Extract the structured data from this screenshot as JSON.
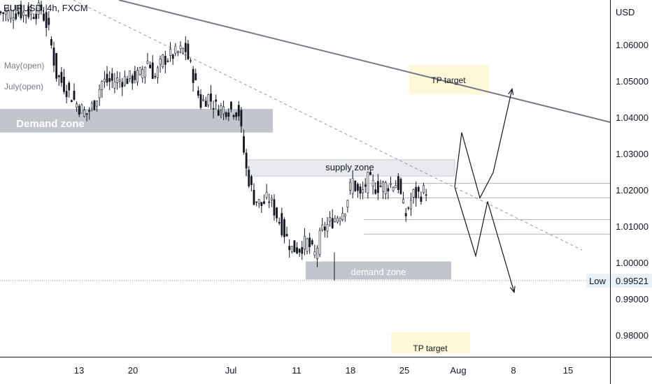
{
  "symbol": "EURUSD, 4h, FXCM",
  "axis": {
    "currency": "USD",
    "price_ticks": [
      "1.06000",
      "1.05000",
      "1.04000",
      "1.03000",
      "1.02000",
      "1.01000",
      "1.00000",
      "0.99000",
      "0.98000"
    ],
    "date_ticks": [
      "13",
      "20",
      "Jul",
      "11",
      "18",
      "25",
      "Aug",
      "8",
      "15"
    ]
  },
  "low_label": {
    "text": "Low",
    "value": "0.99521"
  },
  "session_labels": [
    "May(open)",
    "July(open)"
  ],
  "zones": {
    "demand_upper": "Demand zone",
    "supply": "supply zone",
    "demand_lower": "demand zone",
    "tp_upper": "TP target",
    "tp_lower": "TP target"
  },
  "colors": {
    "bull": "#ffffff",
    "bear": "#131722",
    "wick": "#131722",
    "demand_zone": "#c2c5cc",
    "supply_zone": "#e9eaed",
    "tp_zone": "#fdf9d8",
    "trendline": "#787b86",
    "dashed_trend": "#9598a1",
    "projection": "#131722"
  },
  "chart_data": {
    "type": "candlestick",
    "symbol": "EURUSD",
    "timeframe": "4h",
    "y_unit": "USD",
    "ylim": [
      0.9725,
      1.0715
    ],
    "x_ticks": [
      "13",
      "20",
      "Jul",
      "11",
      "18",
      "25",
      "Aug",
      "8",
      "15"
    ],
    "close_path": [
      [
        "2022-06-07",
        1.069
      ],
      [
        "2022-06-08",
        1.07
      ],
      [
        "2022-06-09",
        1.064
      ],
      [
        "2022-06-10",
        1.052
      ],
      [
        "2022-06-13",
        1.043
      ],
      [
        "2022-06-14",
        1.041
      ],
      [
        "2022-06-15",
        1.044
      ],
      [
        "2022-06-16",
        1.05
      ],
      [
        "2022-06-17",
        1.05
      ],
      [
        "2022-06-20",
        1.051
      ],
      [
        "2022-06-21",
        1.052
      ],
      [
        "2022-06-22",
        1.056
      ],
      [
        "2022-06-23",
        1.051
      ],
      [
        "2022-06-24",
        1.056
      ],
      [
        "2022-06-27",
        1.059
      ],
      [
        "2022-06-28",
        1.052
      ],
      [
        "2022-06-29",
        1.044
      ],
      [
        "2022-06-30",
        1.046
      ],
      [
        "2022-07-01",
        1.043
      ],
      [
        "2022-07-04",
        1.042
      ],
      [
        "2022-07-05",
        1.026
      ],
      [
        "2022-07-06",
        1.018
      ],
      [
        "2022-07-07",
        1.016
      ],
      [
        "2022-07-08",
        1.018
      ],
      [
        "2022-07-11",
        1.004
      ],
      [
        "2022-07-12",
        1.004
      ],
      [
        "2022-07-13",
        1.006
      ],
      [
        "2022-07-14",
        1.002
      ],
      [
        "2022-07-15",
        1.009
      ],
      [
        "2022-07-18",
        1.015
      ],
      [
        "2022-07-19",
        1.023
      ],
      [
        "2022-07-20",
        1.018
      ],
      [
        "2022-07-21",
        1.023
      ],
      [
        "2022-07-22",
        1.021
      ],
      [
        "2022-07-25",
        1.022
      ],
      [
        "2022-07-26",
        1.013
      ],
      [
        "2022-07-27",
        1.019
      ],
      [
        "2022-07-28",
        1.019
      ],
      [
        "2022-07-29",
        1.021
      ]
    ],
    "low": 0.99521,
    "levels": [
      {
        "label": "Demand zone",
        "from": 1.036,
        "to": 1.0425
      },
      {
        "label": "supply zone",
        "from": 1.024,
        "to": 1.0285
      },
      {
        "label": "demand zone",
        "from": 0.9955,
        "to": 1.0005
      },
      {
        "label": "TP target",
        "from": 1.0465,
        "to": 1.0545
      },
      {
        "label": "TP target",
        "from": 0.975,
        "to": 0.981
      }
    ],
    "horizontal_lines": [
      1.022,
      1.018,
      1.012,
      1.008,
      0.99521
    ],
    "scenario_up": [
      1.021,
      1.036,
      1.018,
      1.025,
      1.048
    ],
    "scenario_down": [
      1.021,
      1.002,
      1.017,
      0.992
    ]
  }
}
